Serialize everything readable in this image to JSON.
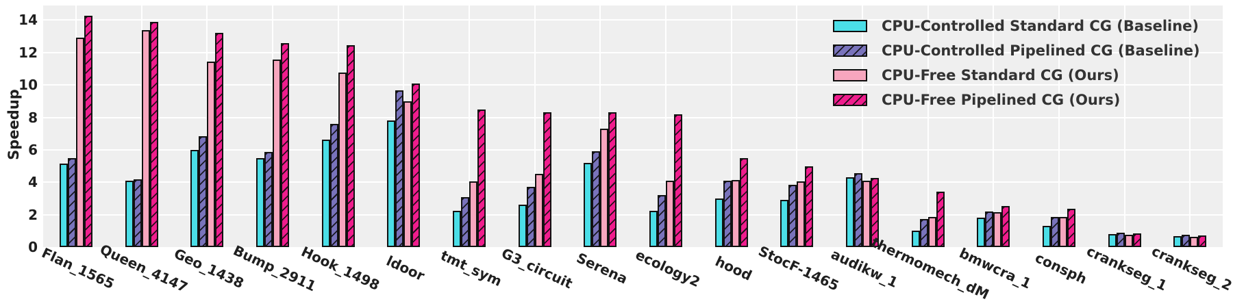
{
  "figure": {
    "y_axis_title": "Speedup"
  },
  "chart_data": {
    "type": "bar",
    "title": "",
    "xlabel": "",
    "ylabel": "Speedup",
    "grid": true,
    "legend_position": "upper right",
    "ylim": [
      0,
      14.9
    ],
    "yticks": [
      0,
      2,
      4,
      6,
      8,
      10,
      12,
      14
    ],
    "categories": [
      "Flan_1565",
      "Queen_4147",
      "Geo_1438",
      "Bump_2911",
      "Hook_1498",
      "ldoor",
      "tmt_sym",
      "G3_circuit",
      "Serena",
      "ecology2",
      "hood",
      "StocF-1465",
      "audikw_1",
      "thermomech_dM",
      "bmwcra_1",
      "consph",
      "crankseg_1",
      "crankseg_2"
    ],
    "series": [
      {
        "name": "CPU-Controlled Standard CG (Baseline)",
        "color": "#4bdee7",
        "hatch": false,
        "values": [
          5.15,
          4.1,
          6.0,
          5.5,
          6.65,
          7.8,
          2.25,
          2.6,
          5.2,
          2.25,
          3.0,
          2.9,
          4.3,
          1.0,
          1.8,
          1.3,
          0.8,
          0.68
        ]
      },
      {
        "name": "CPU-Controlled Pipelined CG (Baseline)",
        "color": "#7973bb",
        "hatch": true,
        "values": [
          5.5,
          4.2,
          6.85,
          5.85,
          7.6,
          9.65,
          3.1,
          3.7,
          5.9,
          3.2,
          4.1,
          3.85,
          4.55,
          1.75,
          2.2,
          1.85,
          0.88,
          0.75
        ]
      },
      {
        "name": "CPU-Free Standard CG (Ours)",
        "color": "#f7a6be",
        "hatch": false,
        "values": [
          12.9,
          13.4,
          11.45,
          11.55,
          10.75,
          9.0,
          4.05,
          4.5,
          7.3,
          4.1,
          4.15,
          4.05,
          4.1,
          1.88,
          2.15,
          1.85,
          0.78,
          0.63
        ]
      },
      {
        "name": "CPU-Free Pipelined CG (Ours)",
        "color": "#ef1d8d",
        "hatch": true,
        "values": [
          14.25,
          13.9,
          13.2,
          12.6,
          12.45,
          10.1,
          8.5,
          8.3,
          8.3,
          8.2,
          5.5,
          5.0,
          4.25,
          3.4,
          2.55,
          2.35,
          0.85,
          0.7
        ]
      }
    ],
    "colors": {
      "plot_background": "#efefef",
      "gridline": "#ffffff",
      "bar_edge": "#111111",
      "tick_text": "#1f1f1f",
      "legend_text": "#333333"
    }
  }
}
